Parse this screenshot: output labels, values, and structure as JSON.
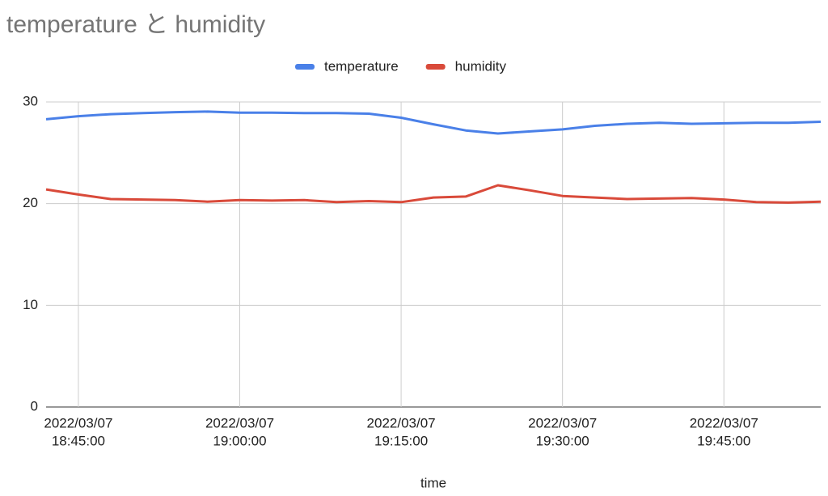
{
  "chart_data": {
    "type": "line",
    "title": "temperature と humidity",
    "x_label": "time",
    "x": [
      "2022/03/07 18:42:00",
      "2022/03/07 18:45:00",
      "2022/03/07 18:48:00",
      "2022/03/07 18:51:00",
      "2022/03/07 18:54:00",
      "2022/03/07 18:57:00",
      "2022/03/07 19:00:00",
      "2022/03/07 19:03:00",
      "2022/03/07 19:06:00",
      "2022/03/07 19:09:00",
      "2022/03/07 19:12:00",
      "2022/03/07 19:15:00",
      "2022/03/07 19:18:00",
      "2022/03/07 19:21:00",
      "2022/03/07 19:24:00",
      "2022/03/07 19:27:00",
      "2022/03/07 19:30:00",
      "2022/03/07 19:33:00",
      "2022/03/07 19:36:00",
      "2022/03/07 19:39:00",
      "2022/03/07 19:42:00",
      "2022/03/07 19:45:00",
      "2022/03/07 19:48:00",
      "2022/03/07 19:51:00",
      "2022/03/07 19:54:00"
    ],
    "series": [
      {
        "name": "temperature",
        "color": "#4a80e8",
        "values": [
          28.3,
          28.6,
          28.8,
          28.9,
          29.0,
          29.05,
          28.95,
          28.95,
          28.9,
          28.9,
          28.85,
          28.45,
          27.8,
          27.2,
          26.9,
          27.1,
          27.3,
          27.65,
          27.85,
          27.95,
          27.85,
          27.9,
          27.95,
          27.95,
          28.05
        ]
      },
      {
        "name": "humidity",
        "color": "#d94a3a",
        "values": [
          21.4,
          20.9,
          20.45,
          20.4,
          20.35,
          20.2,
          20.35,
          20.3,
          20.35,
          20.15,
          20.25,
          20.15,
          20.6,
          20.7,
          21.8,
          21.3,
          20.75,
          20.6,
          20.45,
          20.5,
          20.55,
          20.4,
          20.15,
          20.1,
          20.2
        ]
      }
    ],
    "xlim": [
      "2022/03/07 18:42:00",
      "2022/03/07 19:54:00"
    ],
    "xticks": [
      {
        "value": "2022/03/07 18:45:00",
        "label": [
          "2022/03/07",
          "18:45:00"
        ]
      },
      {
        "value": "2022/03/07 19:00:00",
        "label": [
          "2022/03/07",
          "19:00:00"
        ]
      },
      {
        "value": "2022/03/07 19:15:00",
        "label": [
          "2022/03/07",
          "19:15:00"
        ]
      },
      {
        "value": "2022/03/07 19:30:00",
        "label": [
          "2022/03/07",
          "19:30:00"
        ]
      },
      {
        "value": "2022/03/07 19:45:00",
        "label": [
          "2022/03/07",
          "19:45:00"
        ]
      }
    ],
    "ylim": [
      0,
      30
    ],
    "yticks": [
      0,
      10,
      20,
      30
    ],
    "grid": true,
    "legend": "top"
  }
}
